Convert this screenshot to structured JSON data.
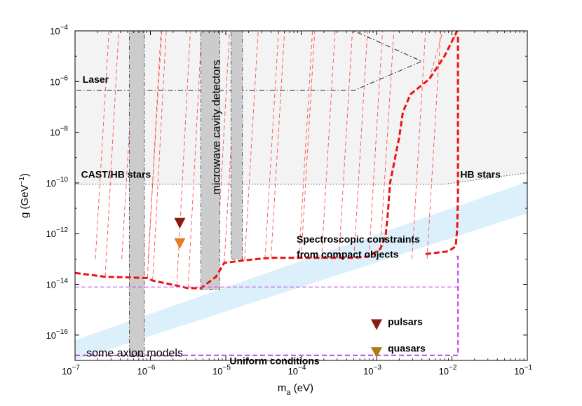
{
  "chart_data": {
    "type": "line",
    "title": "",
    "xlabel": "m",
    "xlabel_sub": "a",
    "xlabel_unit": " (eV)",
    "ylabel": "g (GeV",
    "ylabel_sup": "−1",
    "ylabel_close": ")",
    "xscale": "log",
    "yscale": "log",
    "xlim_exp": [
      -7,
      -1
    ],
    "ylim_exp": [
      -17,
      -4
    ],
    "x_ticks": [
      {
        "base": "10",
        "exp": "−7",
        "v": -7
      },
      {
        "base": "10",
        "exp": "−6",
        "v": -6
      },
      {
        "base": "10",
        "exp": "−5",
        "v": -5
      },
      {
        "base": "10",
        "exp": "−4",
        "v": -4
      },
      {
        "base": "10",
        "exp": "−3",
        "v": -3
      },
      {
        "base": "10",
        "exp": "−2",
        "v": -2
      },
      {
        "base": "10",
        "exp": "−1",
        "v": -1
      }
    ],
    "y_ticks": [
      {
        "base": "10",
        "exp": "−4",
        "v": -4
      },
      {
        "base": "10",
        "exp": "−6",
        "v": -6
      },
      {
        "base": "10",
        "exp": "−8",
        "v": -8
      },
      {
        "base": "10",
        "exp": "−10",
        "v": -10
      },
      {
        "base": "10",
        "exp": "−12",
        "v": -12
      },
      {
        "base": "10",
        "exp": "−14",
        "v": -14
      },
      {
        "base": "10",
        "exp": "−16",
        "v": -16
      }
    ],
    "regions": [
      {
        "name": "laser-region",
        "label": "Laser",
        "color": "#e9e9e9",
        "points": [
          [
            -7,
            -4
          ],
          [
            -5.3,
            -4
          ],
          [
            -3.3,
            -4
          ],
          [
            -2.4,
            -5.2
          ],
          [
            -3.3,
            -6.35
          ],
          [
            -6.95,
            -6.35
          ],
          [
            -7,
            -6.35
          ]
        ]
      },
      {
        "name": "cast-hb-region",
        "label": "CAST/HB stars",
        "color": "#f3f3f3",
        "points": [
          [
            -7,
            -4
          ],
          [
            -1,
            -4
          ],
          [
            -1,
            -9.6
          ],
          [
            -2.1,
            -10.05
          ],
          [
            -7,
            -10.05
          ]
        ]
      },
      {
        "name": "axion-band",
        "label": "some axion models",
        "color": "#dcf0fc",
        "points": [
          [
            -7,
            -16.2
          ],
          [
            -1,
            -9.95
          ],
          [
            -1,
            -11.2
          ],
          [
            -7,
            -17.0
          ]
        ]
      }
    ],
    "cavity_strips": [
      {
        "name": "cavity-strip-1",
        "color": "#cccccc",
        "x0": -6.28,
        "x1": -6.08,
        "y0": -16.85,
        "y1": -4
      },
      {
        "name": "cavity-strip-2",
        "color": "#cccccc",
        "x0": -5.33,
        "x1": -5.08,
        "y0": -14.2,
        "y1": -4
      },
      {
        "name": "cavity-strip-3",
        "color": "#cccccc",
        "x0": -4.93,
        "x1": -4.78,
        "y0": -13.0,
        "y1": -4
      }
    ],
    "series": [
      {
        "name": "spectroscopic-constraint-line",
        "label": "Spectroscopic constraints from compact objects",
        "color": "#ee1111",
        "style": "dashed-thick",
        "points": [
          [
            -7,
            -13.55
          ],
          [
            -6.6,
            -13.7
          ],
          [
            -6.04,
            -13.75
          ],
          [
            -5.97,
            -13.85
          ],
          [
            -5.65,
            -14.05
          ],
          [
            -5.5,
            -14.15
          ],
          [
            -5.33,
            -14.15
          ],
          [
            -5.13,
            -13.7
          ],
          [
            -5.02,
            -13.15
          ],
          [
            -4.75,
            -13.05
          ],
          [
            -4.4,
            -12.95
          ],
          [
            -4.0,
            -12.95
          ],
          [
            -3.5,
            -12.95
          ],
          [
            -3.3,
            -12.95
          ],
          [
            -3.1,
            -12.9
          ],
          [
            -2.95,
            -12.6
          ],
          [
            -2.88,
            -12.1
          ],
          [
            -2.85,
            -11.2
          ],
          [
            -2.82,
            -10.0
          ],
          [
            -2.76,
            -9.1
          ],
          [
            -2.7,
            -8.2
          ],
          [
            -2.65,
            -7.2
          ],
          [
            -2.55,
            -6.5
          ],
          [
            -2.3,
            -5.9
          ],
          [
            -2.1,
            -5.0
          ],
          [
            -1.93,
            -4
          ]
        ]
      },
      {
        "name": "hb-stars-line",
        "label": "HB stars",
        "color": "#ee1111",
        "style": "dashed-thick",
        "points": [
          [
            -2.35,
            -12.8
          ],
          [
            -2.05,
            -12.7
          ],
          [
            -1.95,
            -12.5
          ],
          [
            -1.93,
            -11.8
          ],
          [
            -1.92,
            -10.5
          ],
          [
            -1.92,
            -4.2
          ]
        ]
      },
      {
        "name": "uniform-conditions-line",
        "label": "Uniform conditions",
        "color": "#c040ec",
        "style": "dashed",
        "points": [
          [
            -7,
            -16.8
          ],
          [
            -1.92,
            -16.8
          ],
          [
            -1.92,
            -12.9
          ],
          [
            -1.95,
            -12.9
          ]
        ]
      },
      {
        "name": "lower-purple-line",
        "label": "",
        "color": "#c040ec",
        "style": "dashed-thin",
        "points": [
          [
            -7,
            -14.1
          ],
          [
            -1.92,
            -14.1
          ]
        ]
      }
    ],
    "markers": [
      {
        "name": "marker-dark-upper",
        "color": "#8b1a10",
        "x": -5.61,
        "y": -11.6
      },
      {
        "name": "marker-orange-upper",
        "color": "#e87b1e",
        "x": -5.61,
        "y": -12.4
      },
      {
        "name": "marker-pulsars",
        "color": "#8b1a10",
        "x": -3.0,
        "y": -15.6
      },
      {
        "name": "marker-quasars",
        "color": "#b07a15",
        "x": -3.0,
        "y": -16.7
      }
    ],
    "annotations": [
      {
        "name": "laser-label",
        "text": "Laser",
        "x": -6.9,
        "y": -6.05,
        "size": 14,
        "weight": "bold",
        "rotate": 0
      },
      {
        "name": "cast-hb-label",
        "text": "CAST/HB stars",
        "x": -6.92,
        "y": -9.8,
        "size": 14,
        "weight": "bold",
        "rotate": 0
      },
      {
        "name": "hb-stars-label",
        "text": "HB stars",
        "x": -1.89,
        "y": -9.8,
        "size": 14,
        "weight": "bold",
        "rotate": 0
      },
      {
        "name": "cavity-label",
        "text": "microwave cavity detectors",
        "x": -5.08,
        "y": -7.8,
        "size": 16,
        "weight": "normal",
        "rotate": -90
      },
      {
        "name": "spectro-label-line1",
        "text": "Spectroscopic constraints",
        "x": -4.06,
        "y": -12.35,
        "size": 14,
        "weight": "bold",
        "rotate": 0
      },
      {
        "name": "spectro-label-line2",
        "text": "from compact objects",
        "x": -4.06,
        "y": -12.95,
        "size": 14,
        "weight": "bold",
        "rotate": 0
      },
      {
        "name": "pulsars-label",
        "text": "pulsars",
        "x": -2.85,
        "y": -15.6,
        "size": 14,
        "weight": "bold",
        "rotate": 0
      },
      {
        "name": "quasars-label",
        "text": "quasars",
        "x": -2.85,
        "y": -16.65,
        "size": 14,
        "weight": "bold",
        "rotate": 0
      },
      {
        "name": "uniform-label",
        "text": "Uniform conditions",
        "x": -4.95,
        "y": -17.15,
        "size": 14,
        "weight": "bold",
        "rotate": 0
      },
      {
        "name": "axion-models-label",
        "text": "some axion models",
        "x": -6.85,
        "y": -16.85,
        "size": 16,
        "weight": "normal",
        "rotate": 0
      }
    ]
  }
}
